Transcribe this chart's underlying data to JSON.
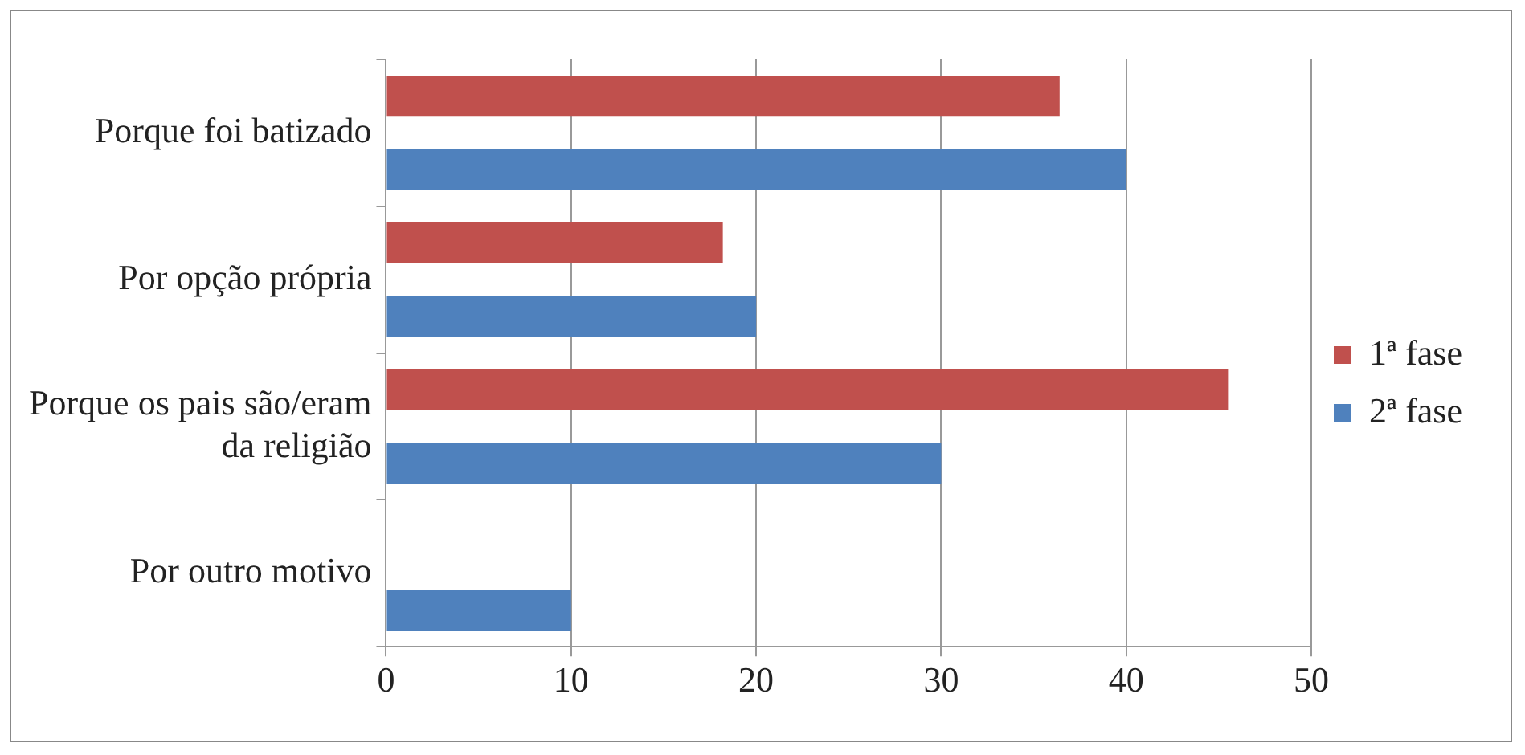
{
  "chart_data": {
    "type": "bar",
    "orientation": "horizontal",
    "categories": [
      "Porque foi batizado",
      "Por opção própria",
      "Porque os pais são/eram da religião",
      "Por outro motivo"
    ],
    "series": [
      {
        "name": "1ª fase",
        "color": "#c0504d",
        "values": [
          36.4,
          18.2,
          45.5,
          0
        ]
      },
      {
        "name": "2ª fase",
        "color": "#4f81bd",
        "values": [
          40,
          20,
          30,
          10
        ]
      }
    ],
    "xlim": [
      0,
      50
    ],
    "xticks": [
      0,
      10,
      20,
      30,
      40,
      50
    ],
    "grid": "x",
    "legend": "right"
  }
}
